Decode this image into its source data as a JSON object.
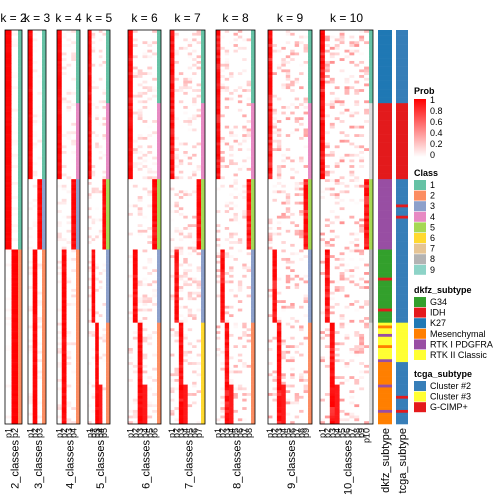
{
  "chart_data": {
    "type": "heatmap",
    "title": "",
    "panels": [
      {
        "k": 2,
        "title": "k = 2",
        "xlabel": "2_classes",
        "columns": [
          "p1",
          "p2"
        ]
      },
      {
        "k": 3,
        "title": "k = 3",
        "xlabel": "3_classes",
        "columns": [
          "p1",
          "p2",
          "p3"
        ]
      },
      {
        "k": 4,
        "title": "k = 4",
        "xlabel": "4_classes",
        "columns": [
          "p1",
          "p2",
          "p3",
          "p4"
        ]
      },
      {
        "k": 5,
        "title": "k = 5",
        "xlabel": "5_classes",
        "columns": [
          "p1",
          "p2",
          "p3",
          "p4",
          "p5"
        ]
      },
      {
        "k": 6,
        "title": "k = 6",
        "xlabel": "6_classes",
        "columns": [
          "p1",
          "p2",
          "p3",
          "p4",
          "p5",
          "p6"
        ]
      },
      {
        "k": 7,
        "title": "k = 7",
        "xlabel": "7_classes",
        "columns": [
          "p1",
          "p2",
          "p3",
          "p4",
          "p5",
          "p6",
          "p7"
        ]
      },
      {
        "k": 8,
        "title": "k = 8",
        "xlabel": "8_classes",
        "columns": [
          "p1",
          "p2",
          "p3",
          "p4",
          "p5",
          "p6",
          "p7",
          "p8"
        ]
      },
      {
        "k": 9,
        "title": "k = 9",
        "xlabel": "9_classes",
        "columns": [
          "p1",
          "p2",
          "p3",
          "p4",
          "p5",
          "p6",
          "p7",
          "p8",
          "p9"
        ]
      },
      {
        "k": 10,
        "title": "k = 10",
        "xlabel": "10_classes",
        "columns": [
          "p1",
          "p2",
          "p3",
          "p4",
          "p5",
          "p6",
          "p7",
          "p8",
          "p9",
          "p10"
        ]
      }
    ],
    "annotation_columns": [
      "dkfz_subtype",
      "tcga_subtype"
    ],
    "value_range": [
      0,
      1
    ],
    "legends": {
      "prob": {
        "title": "Prob",
        "ticks": [
          "1",
          "0.8",
          "0.6",
          "0.4",
          "0.2",
          "0"
        ],
        "colors": [
          "#ff0000",
          "#ffffff"
        ]
      },
      "class": {
        "title": "Class",
        "items": [
          {
            "label": "1",
            "color": "#66C2A5"
          },
          {
            "label": "2",
            "color": "#FC8D62"
          },
          {
            "label": "3",
            "color": "#8DA0CB"
          },
          {
            "label": "4",
            "color": "#E78AC3"
          },
          {
            "label": "5",
            "color": "#A6D854"
          },
          {
            "label": "6",
            "color": "#FFD92F"
          },
          {
            "label": "7",
            "color": "#E5C494"
          },
          {
            "label": "8",
            "color": "#B3B3B3"
          },
          {
            "label": "9",
            "color": "#8DD3C7"
          }
        ]
      },
      "dkfz_subtype": {
        "title": "dkfz_subtype",
        "items": [
          {
            "label": "G34",
            "color": "#33A02C"
          },
          {
            "label": "IDH",
            "color": "#E31A1C"
          },
          {
            "label": "K27",
            "color": "#1F78B4"
          },
          {
            "label": "Mesenchymal",
            "color": "#FF7F00"
          },
          {
            "label": "RTK I PDGFRA",
            "color": "#984EA3"
          },
          {
            "label": "RTK II Classic",
            "color": "#FFFF33"
          }
        ]
      },
      "tcga_subtype": {
        "title": "tcga_subtype",
        "items": [
          {
            "label": "Cluster #2",
            "color": "#377EB8"
          },
          {
            "label": "Cluster #3",
            "color": "#FFFF33"
          },
          {
            "label": "G-CIMP+",
            "color": "#E41A1C"
          }
        ]
      }
    }
  }
}
